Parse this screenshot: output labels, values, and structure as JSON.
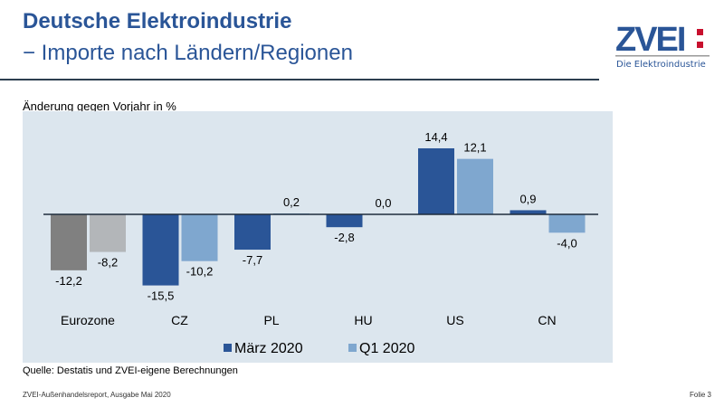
{
  "header": {
    "title": "Deutsche Elektroindustrie",
    "subtitle": "− Importe nach Ländern/Regionen"
  },
  "logo": {
    "text": "ZVEI:",
    "tagline": "Die Elektroindustrie",
    "colors": {
      "blue": "#2a5597",
      "red": "#c8102e"
    }
  },
  "source": "Quelle: Destatis und ZVEI-eigene Berechnungen",
  "footer": {
    "left": "ZVEI-Außenhandelsreport, Ausgabe Mai 2020",
    "right": "Folie 3"
  },
  "chart_data": {
    "type": "bar",
    "title": "",
    "ylabel": "Änderung gegen Vorjahr in %",
    "categories": [
      "Eurozone",
      "CZ",
      "PL",
      "HU",
      "US",
      "CN"
    ],
    "series": [
      {
        "name": "März 2020",
        "values": [
          -12.2,
          -15.5,
          -7.7,
          -2.8,
          14.4,
          0.9
        ],
        "labels": [
          "-12,2",
          "-15,5",
          "-7,7",
          "-2,8",
          "14,4",
          "0,9"
        ],
        "color": "#2a5597"
      },
      {
        "name": "Q1 2020",
        "values": [
          -8.2,
          -10.2,
          0.2,
          0.0,
          12.1,
          -4.0
        ],
        "labels": [
          "-8,2",
          "-10,2",
          "0,2",
          "0,0",
          "12,1",
          "-4,0"
        ],
        "color": "#7fa7cf"
      }
    ],
    "eurozone_colors": [
      "#808080",
      "#b3b6b9"
    ],
    "background": "#dce6ee",
    "ylim": [
      -18,
      22
    ],
    "grid": false,
    "legend": "bottom"
  }
}
